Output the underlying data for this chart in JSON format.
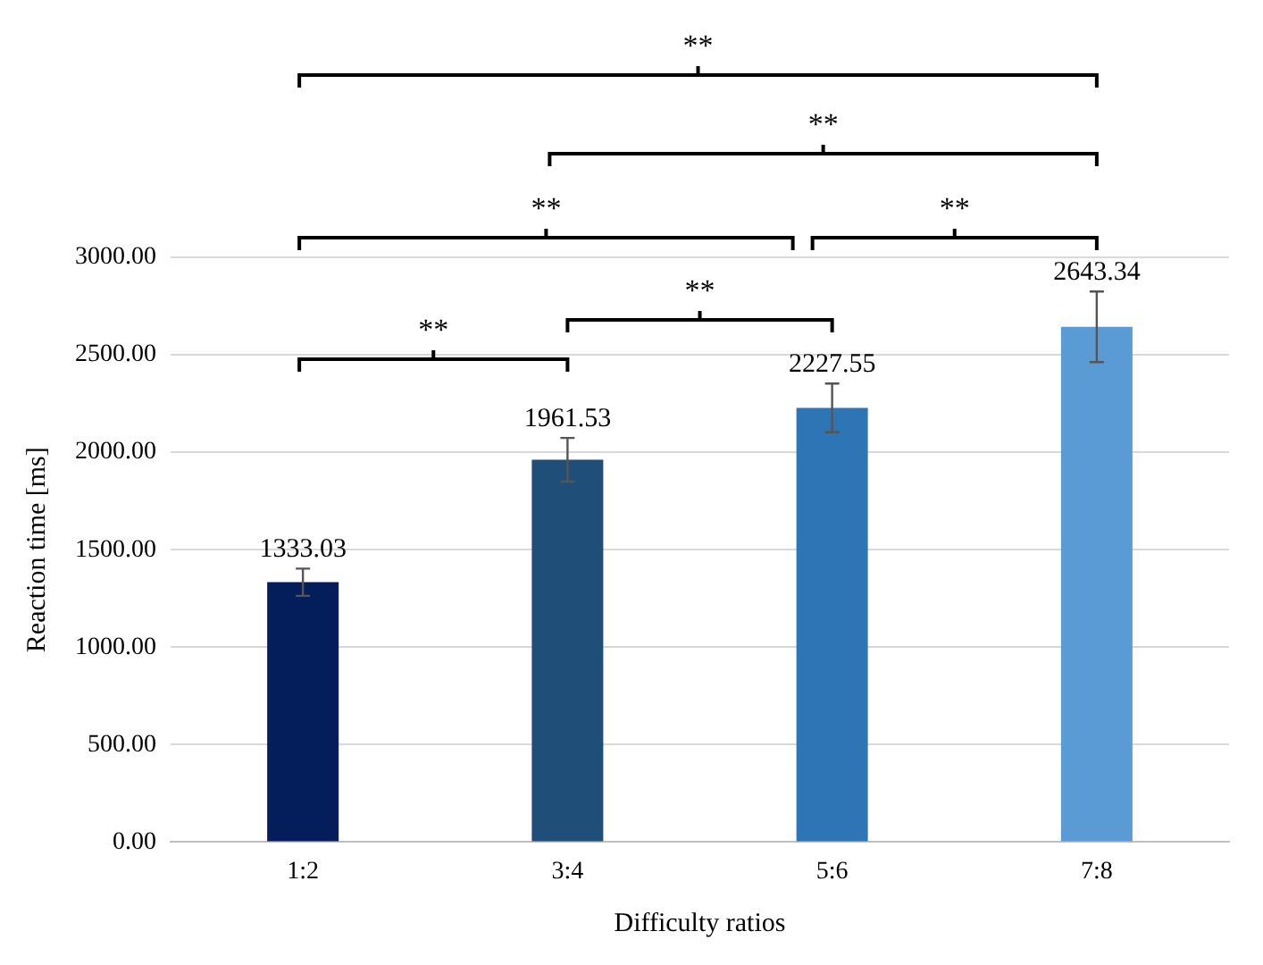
{
  "chart_data": {
    "type": "bar",
    "xlabel": "Difficulty ratios",
    "ylabel": "Reaction time [ms]",
    "categories": [
      "1:2",
      "3:4",
      "5:6",
      "7:8"
    ],
    "values": [
      1333.03,
      1961.53,
      2227.55,
      2643.34
    ],
    "colors": [
      "#041e5b",
      "#1f4e79",
      "#2e75b6",
      "#5b9bd5"
    ],
    "errors": [
      70,
      112,
      125,
      181
    ],
    "data_labels": true,
    "ylim": [
      0,
      3000
    ],
    "yticks": [
      {
        "value": 0,
        "label": "0.00"
      },
      {
        "value": 500,
        "label": "500.00"
      },
      {
        "value": 1000,
        "label": "1000.00"
      },
      {
        "value": 1500,
        "label": "1500.00"
      },
      {
        "value": 2000,
        "label": "2000.00"
      },
      {
        "value": 2500,
        "label": "2500.00"
      },
      {
        "value": 3000,
        "label": "3000.00"
      }
    ],
    "grid": "y",
    "legend": false,
    "annotations": [
      "**",
      "**",
      "**",
      "**",
      "**",
      "**"
    ]
  }
}
